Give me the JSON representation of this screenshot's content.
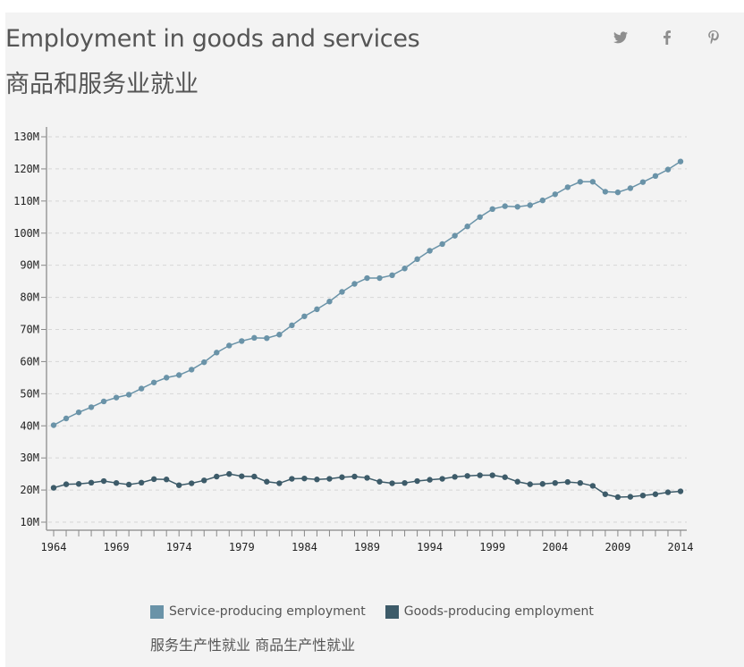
{
  "header": {
    "title_en": "Employment in goods and services",
    "title_zh": "商品和服务业就业"
  },
  "share": [
    {
      "name": "twitter-icon",
      "label": "Twitter"
    },
    {
      "name": "facebook-icon",
      "label": "Facebook"
    },
    {
      "name": "pinterest-icon",
      "label": "Pinterest"
    }
  ],
  "legend": {
    "items": [
      {
        "label": "Service-producing employment",
        "color": "#6a93a8"
      },
      {
        "label": "Goods-producing employment",
        "color": "#3d5b69"
      }
    ],
    "caption_zh": "服务生产性就业 商品生产性就业"
  },
  "chart_data": {
    "type": "line",
    "title": "Employment in goods and services",
    "xlabel": "",
    "ylabel": "",
    "x": [
      1964,
      1965,
      1966,
      1967,
      1968,
      1969,
      1970,
      1971,
      1972,
      1973,
      1974,
      1975,
      1976,
      1977,
      1978,
      1979,
      1980,
      1981,
      1982,
      1983,
      1984,
      1985,
      1986,
      1987,
      1988,
      1989,
      1990,
      1991,
      1992,
      1993,
      1994,
      1995,
      1996,
      1997,
      1998,
      1999,
      2000,
      2001,
      2002,
      2003,
      2004,
      2005,
      2006,
      2007,
      2008,
      2009,
      2010,
      2011,
      2012,
      2013,
      2014
    ],
    "xlim": [
      1964,
      2014
    ],
    "ylim": [
      10,
      130
    ],
    "y_unit": "M",
    "x_ticks": [
      "1964",
      "1969",
      "1974",
      "1979",
      "1984",
      "1989",
      "1994",
      "1999",
      "2004",
      "2009",
      "2014"
    ],
    "y_ticks": [
      "10M",
      "20M",
      "30M",
      "40M",
      "50M",
      "60M",
      "70M",
      "80M",
      "90M",
      "100M",
      "110M",
      "120M",
      "130M"
    ],
    "y_tick_values": [
      10,
      20,
      30,
      40,
      50,
      60,
      70,
      80,
      90,
      100,
      110,
      120,
      130
    ],
    "grid": true,
    "legend_position": "bottom",
    "series": [
      {
        "name": "Service-producing employment",
        "color": "#6a93a8",
        "values": [
          40.2,
          42.3,
          44.2,
          45.8,
          47.6,
          48.8,
          49.7,
          51.6,
          53.5,
          55.0,
          55.8,
          57.5,
          59.8,
          62.8,
          65.0,
          66.4,
          67.4,
          67.3,
          68.4,
          71.3,
          74.1,
          76.3,
          78.7,
          81.7,
          84.2,
          86.0,
          86.0,
          86.9,
          89.0,
          91.9,
          94.5,
          96.6,
          99.2,
          102.1,
          105.0,
          107.5,
          108.4,
          108.2,
          108.7,
          110.2,
          112.1,
          114.3,
          116.0,
          116.0,
          112.9,
          112.7,
          114.0,
          115.9,
          117.8,
          119.8,
          122.3
        ]
      },
      {
        "name": "Goods-producing employment",
        "color": "#3d5b69",
        "values": [
          20.7,
          21.8,
          21.9,
          22.3,
          22.8,
          22.2,
          21.7,
          22.3,
          23.4,
          23.3,
          21.5,
          22.1,
          23.0,
          24.2,
          25.0,
          24.3,
          24.2,
          22.6,
          22.1,
          23.5,
          23.6,
          23.3,
          23.5,
          24.0,
          24.2,
          23.8,
          22.6,
          22.1,
          22.2,
          22.8,
          23.2,
          23.5,
          24.1,
          24.4,
          24.6,
          24.6,
          24.0,
          22.6,
          21.8,
          21.9,
          22.2,
          22.5,
          22.2,
          21.3,
          18.7,
          17.8,
          17.9,
          18.3,
          18.7,
          19.3,
          19.6
        ]
      }
    ]
  }
}
